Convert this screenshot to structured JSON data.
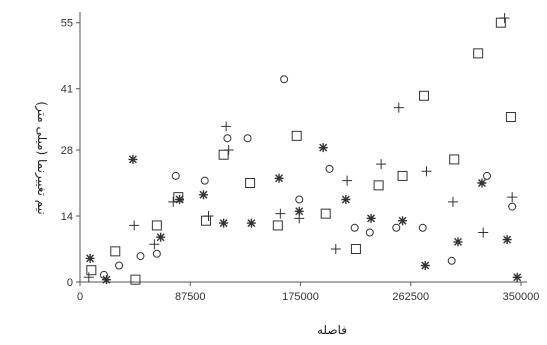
{
  "chart_data": {
    "type": "scatter",
    "xlabel": "فاصله",
    "ylabel": "نیم تغییرنما (میلی متر)",
    "xlim": [
      0,
      350000
    ],
    "ylim": [
      0,
      56
    ],
    "x_ticks": [
      0,
      87500,
      175000,
      262500,
      350000
    ],
    "x_tick_labels": [
      "0",
      "87500",
      "175000",
      "262500",
      "350000"
    ],
    "y_ticks": [
      0,
      14,
      28,
      41,
      55
    ],
    "y_tick_labels": [
      "0",
      "14",
      "28",
      "41",
      "55"
    ],
    "grid": false,
    "series": [
      {
        "marker": "square",
        "points": [
          [
            9000,
            2.5
          ],
          [
            28000,
            6.5
          ],
          [
            44000,
            0.5
          ],
          [
            61000,
            12
          ],
          [
            78000,
            18
          ],
          [
            100000,
            13
          ],
          [
            114000,
            27
          ],
          [
            135000,
            21
          ],
          [
            157000,
            12
          ],
          [
            172000,
            31
          ],
          [
            195000,
            14.5
          ],
          [
            219000,
            7
          ],
          [
            237000,
            20.5
          ],
          [
            256000,
            22.5
          ],
          [
            273000,
            39.5
          ],
          [
            297000,
            26
          ],
          [
            316000,
            48.5
          ],
          [
            334000,
            55
          ],
          [
            342000,
            35
          ]
        ]
      },
      {
        "marker": "circle",
        "points": [
          [
            19000,
            1.5
          ],
          [
            31000,
            3.5
          ],
          [
            48000,
            5.5
          ],
          [
            61000,
            6
          ],
          [
            76000,
            22.5
          ],
          [
            99000,
            21.5
          ],
          [
            117000,
            30.5
          ],
          [
            133000,
            30.5
          ],
          [
            162000,
            43
          ],
          [
            174000,
            17.5
          ],
          [
            198000,
            24
          ],
          [
            218000,
            11.5
          ],
          [
            230000,
            10.5
          ],
          [
            251000,
            11.5
          ],
          [
            272000,
            11.5
          ],
          [
            295000,
            4.5
          ],
          [
            323000,
            22.5
          ],
          [
            343000,
            16
          ]
        ]
      },
      {
        "marker": "plus",
        "points": [
          [
            7000,
            1
          ],
          [
            43000,
            12
          ],
          [
            59000,
            8
          ],
          [
            74000,
            17
          ],
          [
            102000,
            14
          ],
          [
            116000,
            33
          ],
          [
            118000,
            28
          ],
          [
            159000,
            14.5
          ],
          [
            174000,
            13.5
          ],
          [
            203000,
            7
          ],
          [
            212000,
            21.5
          ],
          [
            239000,
            25
          ],
          [
            253000,
            37
          ],
          [
            275000,
            23.5
          ],
          [
            296000,
            17
          ],
          [
            320000,
            10.5
          ],
          [
            337000,
            56
          ],
          [
            343000,
            18
          ]
        ]
      },
      {
        "marker": "asterisk",
        "points": [
          [
            8000,
            5
          ],
          [
            21000,
            0.5
          ],
          [
            42000,
            26
          ],
          [
            64000,
            9.5
          ],
          [
            79000,
            17.5
          ],
          [
            98000,
            18.5
          ],
          [
            114000,
            12.5
          ],
          [
            136000,
            12.5
          ],
          [
            158000,
            22
          ],
          [
            174000,
            15
          ],
          [
            193000,
            28.5
          ],
          [
            211000,
            17.5
          ],
          [
            231000,
            13.5
          ],
          [
            256000,
            13
          ],
          [
            274000,
            3.5
          ],
          [
            300000,
            8.5
          ],
          [
            319000,
            21
          ],
          [
            339000,
            9
          ],
          [
            347000,
            1
          ]
        ]
      }
    ]
  }
}
